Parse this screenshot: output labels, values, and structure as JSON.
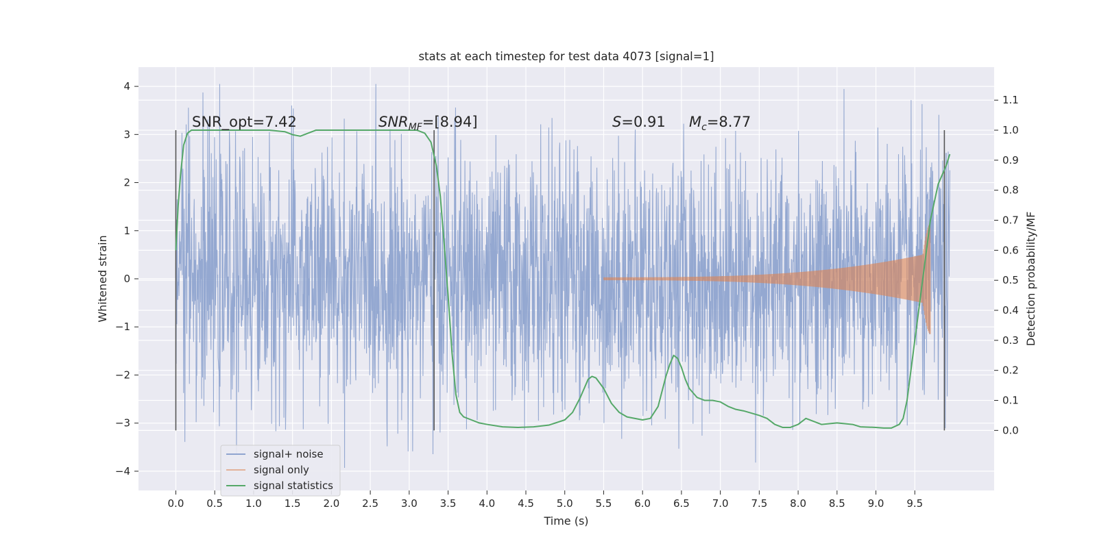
{
  "chart_data": {
    "type": "line",
    "title": "stats at each timestep for test data 4073 [signal=1]",
    "xlabel": "Time (s)",
    "ylabel_left": "Whitened strain",
    "ylabel_right": "Detection probability/MF",
    "xlim": [
      -0.48,
      10.52
    ],
    "ylim_left": [
      -4.4,
      4.4
    ],
    "ylim_right": [
      -0.2,
      1.21
    ],
    "xticks": [
      "0.0",
      "0.5",
      "1.0",
      "1.5",
      "2.0",
      "2.5",
      "3.0",
      "3.5",
      "4.0",
      "4.5",
      "5.0",
      "5.5",
      "6.0",
      "6.5",
      "7.0",
      "7.5",
      "8.0",
      "8.5",
      "9.0",
      "9.5"
    ],
    "yticks_left": [
      "4",
      "3",
      "2",
      "1",
      "0",
      "−1",
      "−2",
      "−3",
      "−4"
    ],
    "yticks_right": [
      "1.1",
      "1.0",
      "0.9",
      "0.8",
      "0.7",
      "0.6",
      "0.5",
      "0.4",
      "0.3",
      "0.2",
      "0.1",
      "0.0"
    ],
    "grid": true,
    "legend_position": "lower-left",
    "annotations": {
      "snr_opt": "SNR_opt=7.42",
      "snr_mf_base": "SNR",
      "snr_mf_sub": "MF",
      "snr_mf_value": "=[8.94]",
      "s_sym": "S",
      "s_value": "=0.91",
      "mc_base": "M",
      "mc_sub": "c",
      "mc_value": "=8.77"
    },
    "vertical_markers": [
      0.0,
      3.32,
      9.88
    ],
    "marker_y_range": [
      0.0,
      1.0
    ],
    "series": [
      {
        "name": "signal+ noise",
        "color": "#8fa4cf",
        "axis": "left",
        "x_range": [
          0.0,
          9.95
        ],
        "typical_envelope": 1.3,
        "peak_range": [
          -4.0,
          4.05
        ]
      },
      {
        "name": "signal only",
        "color": "#dd8452",
        "axis": "left",
        "chirp": {
          "start": 5.5,
          "end": 9.7,
          "amplitude_at_5_5": 0.03,
          "amplitude_at_9_6": 0.5,
          "peak_amplitude": 1.15
        }
      },
      {
        "name": "signal statistics",
        "color": "#55a868",
        "axis": "right",
        "x": [
          0.0,
          0.03,
          0.06,
          0.1,
          0.15,
          0.2,
          0.3,
          0.5,
          0.8,
          1.0,
          1.2,
          1.4,
          1.5,
          1.6,
          1.7,
          1.8,
          1.9,
          2.0,
          2.5,
          3.0,
          3.1,
          3.2,
          3.28,
          3.35,
          3.4,
          3.45,
          3.5,
          3.55,
          3.6,
          3.65,
          3.7,
          3.8,
          3.9,
          4.0,
          4.2,
          4.4,
          4.6,
          4.8,
          5.0,
          5.1,
          5.2,
          5.3,
          5.35,
          5.4,
          5.5,
          5.6,
          5.7,
          5.8,
          6.0,
          6.1,
          6.2,
          6.3,
          6.35,
          6.4,
          6.45,
          6.5,
          6.55,
          6.6,
          6.7,
          6.8,
          6.9,
          7.0,
          7.1,
          7.2,
          7.3,
          7.5,
          7.6,
          7.7,
          7.8,
          7.9,
          8.0,
          8.1,
          8.2,
          8.3,
          8.5,
          8.7,
          8.8,
          9.0,
          9.1,
          9.2,
          9.3,
          9.35,
          9.4,
          9.5,
          9.6,
          9.7,
          9.8,
          9.9,
          9.95
        ],
        "y": [
          0.6,
          0.75,
          0.85,
          0.95,
          0.99,
          1.0,
          1.0,
          1.0,
          1.0,
          1.0,
          1.0,
          0.995,
          0.985,
          0.98,
          0.99,
          1.0,
          1.0,
          1.0,
          1.0,
          1.0,
          1.0,
          0.99,
          0.96,
          0.88,
          0.78,
          0.62,
          0.45,
          0.26,
          0.12,
          0.06,
          0.045,
          0.035,
          0.025,
          0.02,
          0.012,
          0.01,
          0.012,
          0.018,
          0.035,
          0.06,
          0.11,
          0.17,
          0.18,
          0.175,
          0.14,
          0.09,
          0.06,
          0.045,
          0.035,
          0.04,
          0.08,
          0.18,
          0.22,
          0.25,
          0.24,
          0.21,
          0.17,
          0.14,
          0.11,
          0.1,
          0.1,
          0.095,
          0.08,
          0.07,
          0.065,
          0.05,
          0.04,
          0.02,
          0.01,
          0.01,
          0.02,
          0.04,
          0.03,
          0.02,
          0.025,
          0.02,
          0.012,
          0.01,
          0.008,
          0.008,
          0.02,
          0.04,
          0.1,
          0.3,
          0.5,
          0.7,
          0.82,
          0.88,
          0.92
        ]
      }
    ]
  }
}
